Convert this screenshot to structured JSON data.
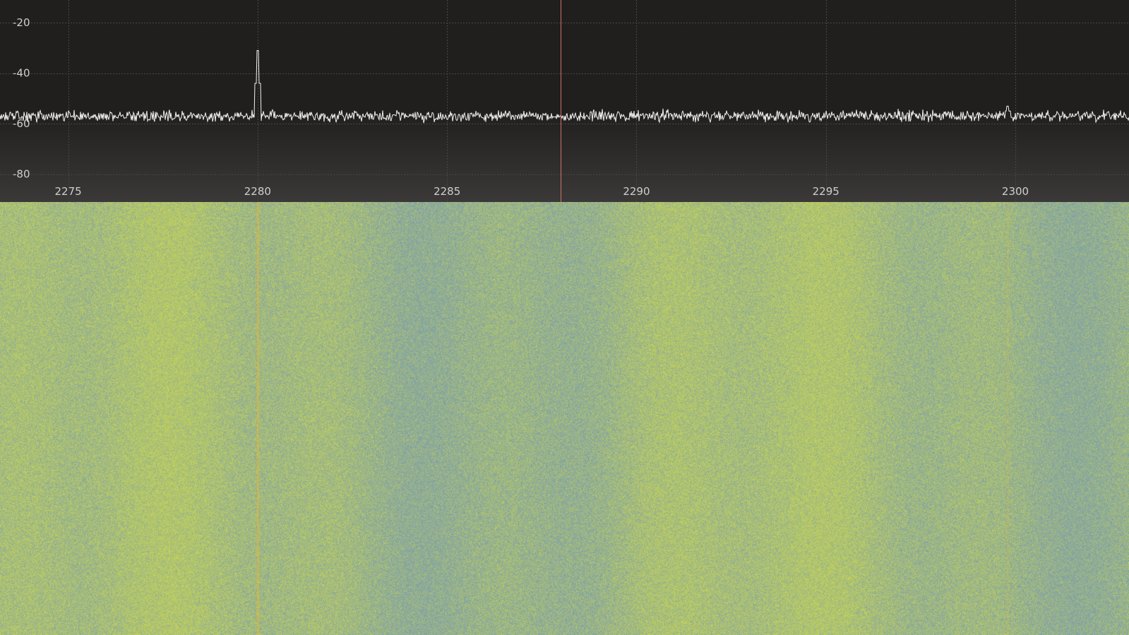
{
  "colors": {
    "plot_background_top": "#211e1e",
    "plot_background_bottom": "#3b3838",
    "grid": "#4a4646",
    "trace": "#f2f2f2",
    "tick_label": "#cfcfcf",
    "tuning_cursor": "#c9756b",
    "waterfall_base": "#8db486",
    "waterfall_low": "#7fa0a8",
    "waterfall_high": "#c2d15a",
    "waterfall_peak": "#e2b53a"
  },
  "chart_data": {
    "type": "line",
    "xlim": [
      2273.2,
      2303.0
    ],
    "ylim": [
      -91,
      -11
    ],
    "grid": true,
    "xticks": [
      2275,
      2280,
      2285,
      2290,
      2295,
      2300
    ],
    "yticks": [
      -20,
      -40,
      -60,
      -80
    ],
    "xtick_labels": [
      "2275",
      "2280",
      "2285",
      "2290",
      "2295",
      "2300"
    ],
    "ytick_labels": [
      "-20",
      "-40",
      "-60",
      "-80"
    ],
    "noise_floor": -57,
    "noise_spread": 1.3,
    "peaks": [
      {
        "x": 2280.0,
        "y": -31
      },
      {
        "x": 2299.8,
        "y": -53
      }
    ],
    "tuning_frequency": 2288.0
  }
}
